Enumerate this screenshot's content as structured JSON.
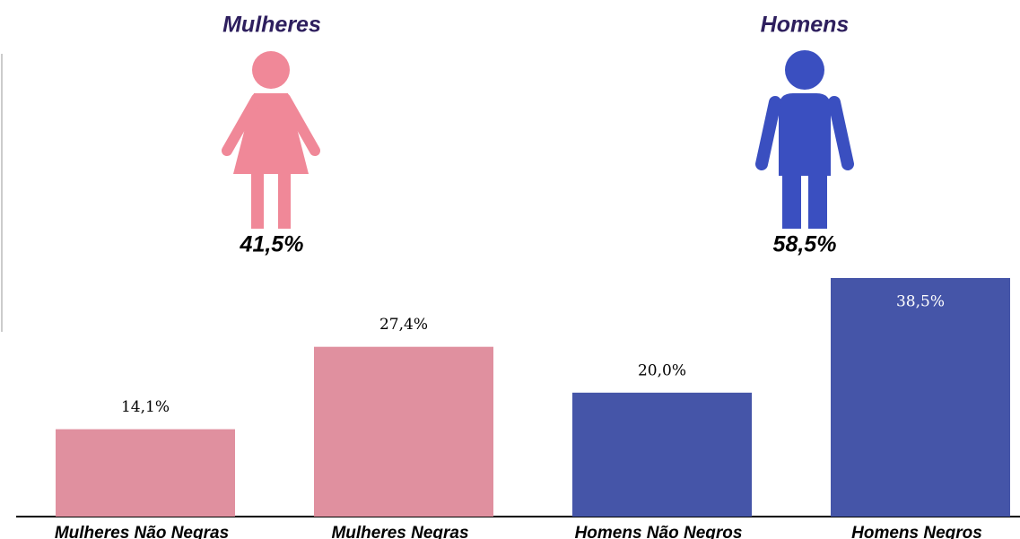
{
  "chart_data": {
    "type": "bar",
    "categories": [
      "Mulheres Não Negras",
      "Mulheres Negras",
      "Homens Não Negros",
      "Homens Negros"
    ],
    "values": [
      14.1,
      27.4,
      20.0,
      38.5
    ],
    "value_labels": [
      "14,1%",
      "27,4%",
      "20,0%",
      "38,5%"
    ],
    "colors": [
      "#e0909f",
      "#e0909f",
      "#4555a8",
      "#4555a8"
    ],
    "groups": [
      {
        "name": "Mulheres",
        "value": 41.5,
        "value_label": "41,5%",
        "color": "#f08898"
      },
      {
        "name": "Homens",
        "value": 58.5,
        "value_label": "58,5%",
        "color": "#3a4fc0"
      }
    ]
  }
}
